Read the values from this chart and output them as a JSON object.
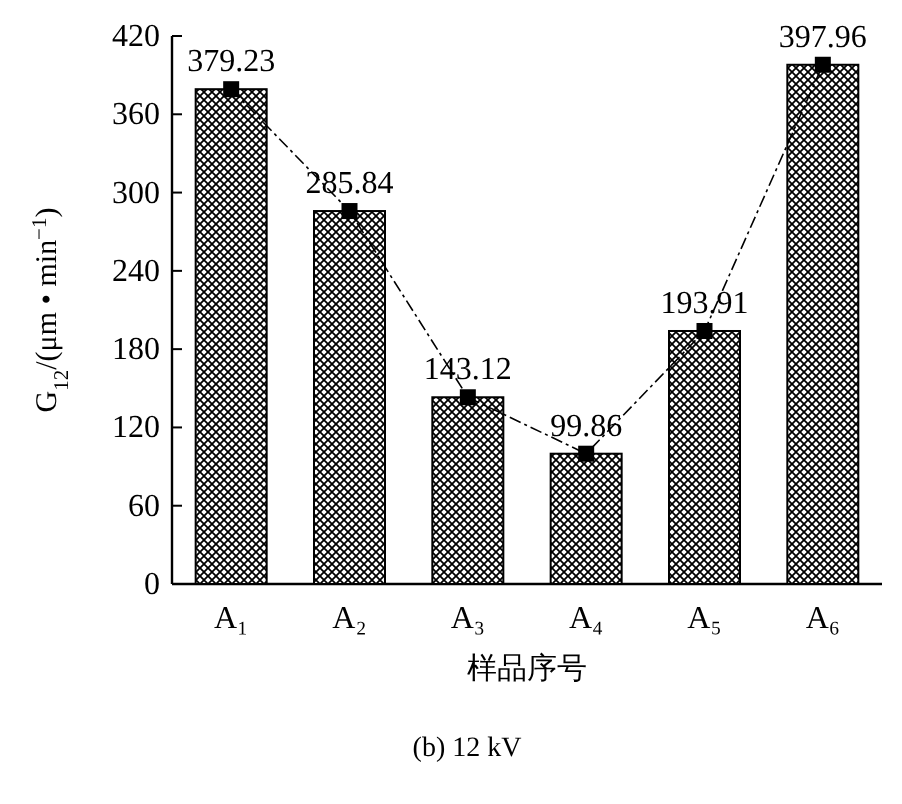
{
  "chart_data": {
    "type": "bar",
    "xlabel": "样品序号",
    "ylabel": "G$_{12}$/(μm • min$^{−1}$)",
    "categories": [
      "A₁",
      "A₂",
      "A₃",
      "A₄",
      "A₅",
      "A₆"
    ],
    "series": [
      {
        "color": "#000000",
        "values": [
          379.23,
          285.84,
          143.12,
          99.86,
          193.91,
          397.96
        ]
      },
      {
        "type": "line",
        "color": "#000000",
        "marker": "square",
        "line_style": "dashed",
        "values": [
          379.23,
          285.84,
          143.12,
          99.86,
          193.91,
          397.96
        ],
        "value_labels": [
          "379.23",
          "285.84",
          "143.12",
          "99.86",
          "193.91",
          "397.96"
        ]
      }
    ],
    "ylim": [
      0,
      420
    ],
    "yticks": [
      0,
      60,
      120,
      180,
      240,
      300,
      360,
      420
    ],
    "annotations": [
      "(b) 12 kV"
    ]
  }
}
